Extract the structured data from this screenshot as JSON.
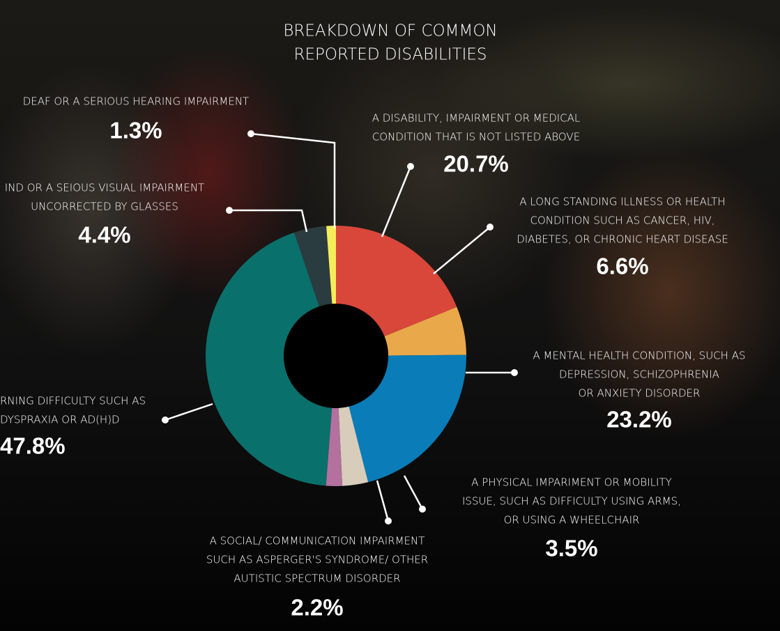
{
  "chart_data": {
    "type": "pie",
    "title": [
      "BREAKDOWN OF COMMON",
      "REPORTED DISABILITIES"
    ],
    "categories": [
      [
        "A DISABILITY, IMPAIRMENT OR MEDICAL",
        "CONDITION THAT IS NOT LISTED ABOVE"
      ],
      [
        "A LONG STANDING ILLNESS OR HEALTH",
        "CONDITION SUCH AS CANCER, HIV,",
        "DIABETES, OR CHRONIC HEART DISEASE"
      ],
      [
        "A MENTAL HEALTH CONDITION, SUCH AS",
        "DEPRESSION, SCHIZOPHRENIA",
        "OR ANXIETY DISORDER"
      ],
      [
        "A PHYSICAL IMPARIMENT OR MOBILITY",
        "ISSUE, SUCH AS DIFFICULTY USING ARMS,",
        "OR USING A WHEELCHAIR"
      ],
      [
        "A SOCIAL/ COMMUNICATION IMPAIRMENT",
        "SUCH AS ASPERGER'S SYNDROME/ OTHER",
        "AUTISTIC SPECTRUM DISORDER"
      ],
      [
        "RNING DIFFICULTY SUCH AS",
        "DYSPRAXIA OR AD(H)D"
      ],
      [
        "IND OR A SEIOUS VISUAL IMPAIRMENT",
        "UNCORRECTED BY GLASSES"
      ],
      [
        "DEAF OR A SERIOUS HEARING IMPAIRMENT"
      ]
    ],
    "values": [
      20.7,
      6.6,
      23.2,
      3.5,
      2.2,
      47.8,
      4.4,
      1.3
    ],
    "value_labels": [
      "20.7%",
      "6.6%",
      "23.2%",
      "3.5%",
      "2.2%",
      "47.8%",
      "4.4%",
      "1.3%"
    ],
    "colors": [
      "#d9463a",
      "#e9a84a",
      "#0a7cb8",
      "#d8cdbb",
      "#b4709f",
      "#0a706c",
      "#2b3c40",
      "#f5ec5a"
    ]
  }
}
